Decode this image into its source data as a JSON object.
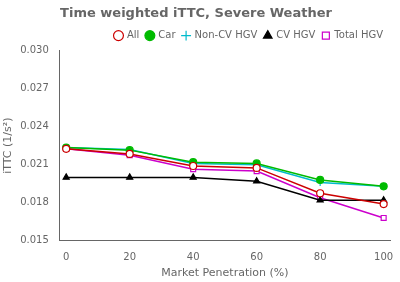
{
  "chart_data": {
    "type": "line",
    "title": "Time weighted iTTC, Severe Weather",
    "xlabel": "Market Penetration (%)",
    "ylabel": "iTTC (1/s²)",
    "x": [
      0,
      20,
      40,
      60,
      80,
      100
    ],
    "series": [
      {
        "name": "All",
        "color": "#cc0000",
        "marker": "open circle",
        "values": [
          0.02225,
          0.02185,
          0.0209,
          0.02075,
          0.01875,
          0.0179
        ]
      },
      {
        "name": "Car",
        "color": "#00bb00",
        "marker": "filled circle",
        "values": [
          0.02235,
          0.02215,
          0.0212,
          0.0211,
          0.0198,
          0.0193
        ]
      },
      {
        "name": "Non-CV HGV",
        "color": "#00bbcc",
        "marker": "plus",
        "values": [
          0.02235,
          0.0222,
          0.0211,
          0.021,
          0.0196,
          0.0193
        ]
      },
      {
        "name": "CV HGV",
        "color": "#000000",
        "marker": "filled triangle",
        "values": [
          0.02,
          0.02,
          0.02,
          0.0197,
          0.0182,
          0.0182
        ]
      },
      {
        "name": "Total HGV",
        "color": "#cc00cc",
        "marker": "open square",
        "values": [
          0.02225,
          0.02175,
          0.02065,
          0.0205,
          0.0184,
          0.0168
        ]
      }
    ],
    "xlim": [
      -2,
      102
    ],
    "xticks": [
      0,
      20,
      40,
      60,
      80,
      100
    ],
    "ylim": [
      0.015,
      0.03
    ],
    "yticks": [
      0.015,
      0.018,
      0.021,
      0.024,
      0.027,
      {
        "value": 0.03,
        "label": "0.030"
      }
    ],
    "grid": false,
    "legend": "upper right"
  }
}
